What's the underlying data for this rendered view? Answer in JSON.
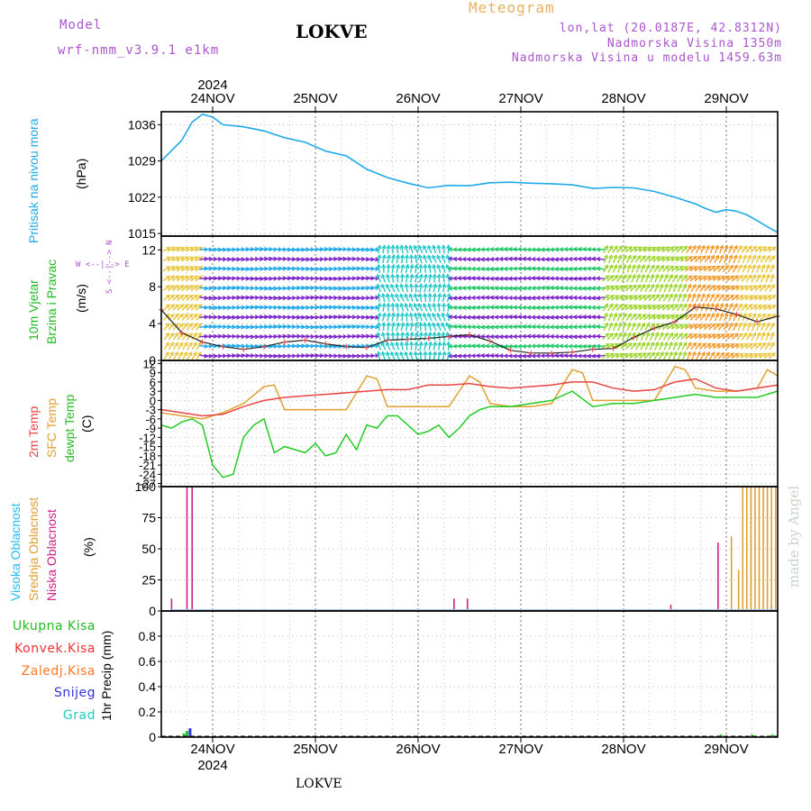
{
  "header": {
    "model_label": "Model",
    "model_name": "wrf-nmm_v3.9.1 e1km",
    "station": "LOKVE",
    "meteogram": "Meteogram",
    "lonlat": "lon,lat (20.0187E, 42.8312N)",
    "elevation": "Nadmorska Visina 1350m",
    "model_elevation": "Nadmorska Visina u modelu 1459.63m"
  },
  "time_axis": {
    "year": "2024",
    "days": [
      "24NOV",
      "25NOV",
      "26NOV",
      "27NOV",
      "28NOV",
      "29NOV"
    ],
    "footer_station": "LOKVE"
  },
  "credit": "made by Angel",
  "colors": {
    "pressure": "#1fa9e8",
    "temp2m": "#e84444",
    "sfc_temp": "#e0a030",
    "dewpoint": "#22cc22",
    "visoka": "#22bbee",
    "srednja": "#e0a030",
    "niska": "#cc2288",
    "ukupna": "#22cc22",
    "konvek": "#ee3333",
    "zaledj": "#ff7722",
    "snijeg": "#3333dd",
    "grad": "#22ccbb",
    "header_purple": "#aa55cc",
    "header_orange": "#e8b060"
  },
  "panels": {
    "pressure": {
      "label1": "Pritisak na nivou mora",
      "unit": "(hPa)"
    },
    "wind": {
      "label1": "10m Vjetar",
      "label2": "Brzina i Pravac",
      "unit": "(m/s)",
      "compass_ns": "S <--|--> N",
      "compass_we": "W <--|--> E"
    },
    "temp": {
      "label1": "2m Temp",
      "label2": "SFC Temp",
      "label3": "dewpt Temp",
      "unit": "(C)"
    },
    "cloud": {
      "label1": "Visoka Oblacnost",
      "label2": "Srednja Oblacnost",
      "label3": "Niska Oblacnost",
      "unit": "(%)"
    },
    "precip": {
      "unit": "1hr Precip (mm)",
      "legend": [
        "Ukupna Kisa",
        "Konvek.Kisa",
        "Zaledj.Kisa",
        "Snijeg",
        "Grad"
      ]
    }
  },
  "chart_data": [
    {
      "type": "line",
      "title": "Pritisak na nivou mora",
      "ylabel": "(hPa)",
      "x_range": [
        23.5,
        29.5
      ],
      "ylim": [
        1014.5,
        1038.5
      ],
      "yticks": [
        1015,
        1022,
        1029,
        1036
      ],
      "series": [
        {
          "name": "Pritisak na nivou mora",
          "x": [
            23.5,
            23.6,
            23.7,
            23.8,
            23.9,
            24.0,
            24.1,
            24.2,
            24.3,
            24.5,
            24.7,
            24.9,
            25.1,
            25.3,
            25.5,
            25.7,
            25.9,
            26.1,
            26.3,
            26.5,
            26.7,
            26.9,
            27.1,
            27.3,
            27.5,
            27.7,
            27.9,
            28.1,
            28.3,
            28.5,
            28.7,
            28.8,
            28.9,
            29.0,
            29.1,
            29.2,
            29.3,
            29.4,
            29.5
          ],
          "y": [
            1029,
            1031,
            1033,
            1036.5,
            1038,
            1037.5,
            1036,
            1035.8,
            1035.6,
            1034.8,
            1033.5,
            1032.6,
            1030.9,
            1030,
            1027.4,
            1025.8,
            1024.7,
            1023.8,
            1024.3,
            1024.2,
            1024.8,
            1024.9,
            1024.7,
            1024.6,
            1024.4,
            1023.7,
            1023.9,
            1023.8,
            1023.1,
            1022,
            1020.7,
            1019.8,
            1019.1,
            1019.6,
            1019.3,
            1018.6,
            1017.5,
            1016.3,
            1015.2
          ]
        }
      ]
    },
    {
      "type": "line",
      "title": "10m Vjetar Brzina i Pravac",
      "ylabel": "(m/s)",
      "x_range": [
        23.5,
        29.5
      ],
      "ylim": [
        0,
        13.5
      ],
      "yticks": [
        0,
        4,
        8,
        12
      ],
      "series": [
        {
          "name": "10m Vjetar",
          "x": [
            23.5,
            23.7,
            23.9,
            24.1,
            24.3,
            24.5,
            24.7,
            24.9,
            25.1,
            25.3,
            25.5,
            25.7,
            25.9,
            26.1,
            26.3,
            26.5,
            26.7,
            26.9,
            27.1,
            27.3,
            27.5,
            27.7,
            27.9,
            28.1,
            28.3,
            28.5,
            28.7,
            28.9,
            29.1,
            29.3,
            29.5
          ],
          "y": [
            5.5,
            3,
            2,
            1.5,
            1.2,
            1.5,
            2,
            2.2,
            1.8,
            1.5,
            1.4,
            2.2,
            2.3,
            2.4,
            2.6,
            2.8,
            2.1,
            1.1,
            0.8,
            0.8,
            0.9,
            1.2,
            1.3,
            2.5,
            3.5,
            4.2,
            5.8,
            5.6,
            5,
            4.2,
            4.8
          ]
        }
      ]
    },
    {
      "type": "line",
      "title": "2m Temp / SFC Temp / dewpt Temp",
      "ylabel": "(C)",
      "x_range": [
        23.5,
        29.5
      ],
      "ylim": [
        -28,
        13
      ],
      "yticks": [
        12,
        9,
        6,
        3,
        0,
        -3,
        -6,
        -9,
        -12,
        -15,
        -18,
        -21,
        -24,
        -27
      ],
      "series": [
        {
          "name": "2m Temp",
          "x": [
            23.5,
            23.7,
            23.9,
            24.1,
            24.3,
            24.5,
            24.7,
            24.9,
            25.1,
            25.3,
            25.5,
            25.7,
            25.9,
            26.1,
            26.3,
            26.5,
            26.7,
            26.9,
            27.1,
            27.3,
            27.5,
            27.7,
            27.9,
            28.1,
            28.3,
            28.5,
            28.7,
            28.9,
            29.1,
            29.3,
            29.5
          ],
          "y": [
            -3,
            -4,
            -5,
            -4.5,
            -2,
            0,
            1,
            1.5,
            2,
            2.5,
            3,
            3.5,
            3.5,
            5,
            5,
            5.5,
            4.5,
            4,
            4.5,
            5,
            6,
            6,
            4,
            3,
            3.5,
            6,
            7,
            4,
            3,
            4,
            5
          ]
        },
        {
          "name": "SFC Temp",
          "x": [
            23.5,
            23.7,
            23.9,
            24.1,
            24.3,
            24.5,
            24.6,
            24.7,
            24.9,
            25.1,
            25.3,
            25.5,
            25.6,
            25.7,
            25.9,
            26.1,
            26.3,
            26.5,
            26.6,
            26.7,
            26.9,
            27.1,
            27.3,
            27.5,
            27.6,
            27.7,
            27.9,
            28.1,
            28.3,
            28.5,
            28.6,
            28.7,
            28.9,
            29.1,
            29.3,
            29.4,
            29.5
          ],
          "y": [
            -4,
            -5,
            -6,
            -4,
            -1,
            4.5,
            5,
            -3,
            -3,
            -3,
            -3,
            8,
            7,
            -2,
            -2,
            -2,
            -2,
            8,
            6,
            -1,
            -2,
            -2,
            -1,
            10,
            9,
            0,
            0,
            0,
            0,
            11,
            10,
            4,
            3,
            3,
            4,
            10,
            8
          ]
        },
        {
          "name": "dewpt Temp",
          "x": [
            23.5,
            23.6,
            23.7,
            23.8,
            23.9,
            24.0,
            24.1,
            24.2,
            24.3,
            24.4,
            24.5,
            24.6,
            24.7,
            24.8,
            24.9,
            25.0,
            25.1,
            25.2,
            25.3,
            25.4,
            25.5,
            25.6,
            25.7,
            25.8,
            25.9,
            26.0,
            26.1,
            26.2,
            26.3,
            26.4,
            26.5,
            26.6,
            26.7,
            26.9,
            27.1,
            27.3,
            27.5,
            27.7,
            27.9,
            28.1,
            28.3,
            28.5,
            28.7,
            28.9,
            29.1,
            29.3,
            29.5
          ],
          "y": [
            -8,
            -9,
            -7,
            -6,
            -8,
            -21,
            -25,
            -24,
            -12,
            -8,
            -6,
            -17,
            -15,
            -16,
            -17,
            -14,
            -18,
            -17,
            -11,
            -16,
            -8,
            -9,
            -5,
            -5,
            -8,
            -11,
            -10,
            -8,
            -12,
            -9,
            -5,
            -3,
            -2,
            -2,
            -1,
            0,
            3,
            -2,
            -1,
            -1,
            0,
            1,
            2,
            1,
            1,
            1,
            3
          ]
        }
      ]
    },
    {
      "type": "bar",
      "title": "Oblacnost",
      "ylabel": "(%)",
      "x_range": [
        23.5,
        29.5
      ],
      "ylim": [
        0,
        100
      ],
      "yticks": [
        0,
        25,
        50,
        75,
        100
      ],
      "series": [
        {
          "name": "Niska Oblacnost",
          "x": [
            23.6,
            23.75,
            23.8,
            26.35,
            26.48,
            28.46,
            28.92,
            29.44
          ],
          "values": [
            10,
            100,
            100,
            10,
            10,
            5,
            55,
            5
          ]
        },
        {
          "name": "Srednja Oblacnost",
          "x": [
            29.05,
            29.12,
            29.16,
            29.2,
            29.24,
            29.28,
            29.32,
            29.36,
            29.4,
            29.44,
            29.48
          ],
          "values": [
            60,
            33,
            100,
            100,
            100,
            100,
            100,
            100,
            100,
            100,
            100
          ]
        }
      ]
    },
    {
      "type": "bar",
      "title": "1hr Precip",
      "ylabel": "1hr Precip (mm)",
      "x_range": [
        23.5,
        29.5
      ],
      "ylim": [
        0,
        1.0
      ],
      "yticks": [
        0,
        0.2,
        0.4,
        0.6,
        0.8
      ],
      "series": [
        {
          "name": "Ukupna Kisa",
          "x": [
            23.72,
            23.75,
            28.95,
            29.25,
            29.45
          ],
          "values": [
            0.03,
            0.05,
            0.02,
            0.02,
            0.02
          ]
        },
        {
          "name": "Snijeg",
          "x": [
            23.78
          ],
          "values": [
            0.07
          ]
        }
      ]
    }
  ]
}
